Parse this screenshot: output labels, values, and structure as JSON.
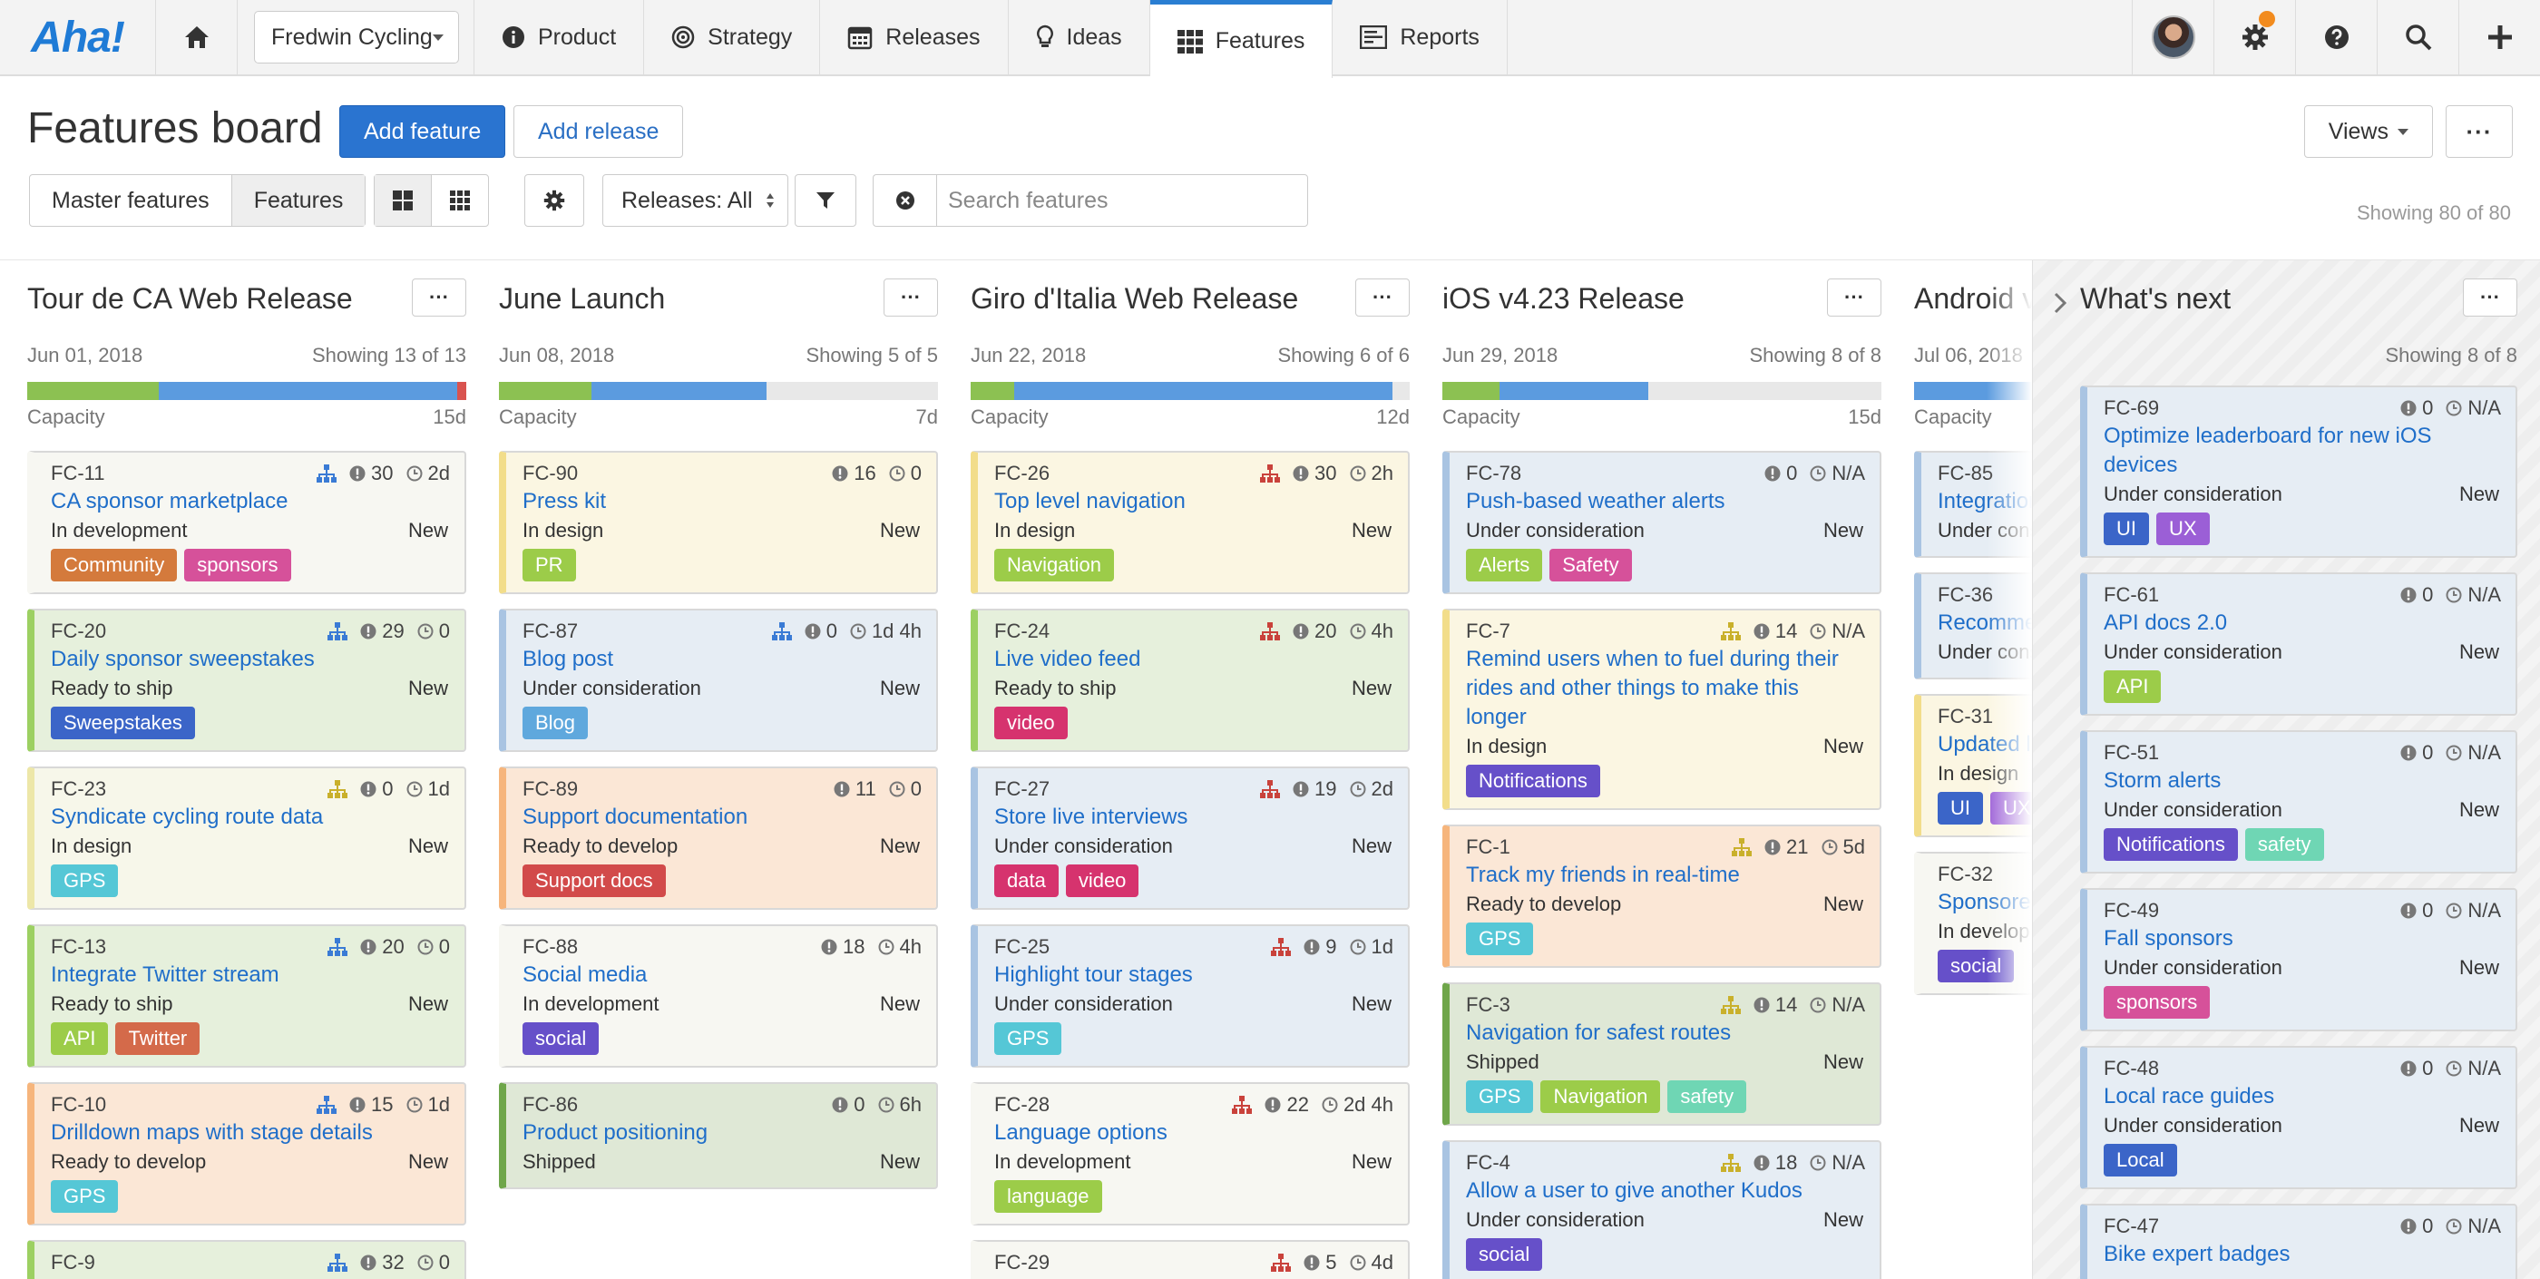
{
  "nav": {
    "logo": "Aha!",
    "product": "Fredwin Cycling",
    "items": [
      {
        "label": "Product",
        "icon": "info-icon"
      },
      {
        "label": "Strategy",
        "icon": "target-icon"
      },
      {
        "label": "Releases",
        "icon": "calendar-icon"
      },
      {
        "label": "Ideas",
        "icon": "lightbulb-icon"
      },
      {
        "label": "Features",
        "icon": "grid-icon",
        "active": true
      },
      {
        "label": "Reports",
        "icon": "report-icon"
      }
    ]
  },
  "header": {
    "title": "Features board",
    "add_feature": "Add feature",
    "add_release": "Add release",
    "views": "Views",
    "master_features": "Master features",
    "features": "Features",
    "releases_filter": "Releases: All",
    "search_placeholder": "Search features",
    "showing": "Showing 80 of 80"
  },
  "colors": {
    "green": "#8cc152",
    "blue": "#5b9bdf",
    "red": "#d9534f",
    "grey": "#e8e8e8",
    "card_white": "#f7f7f2",
    "card_yellow": "#fbf6e2",
    "card_blue": "#e6edf4",
    "card_green": "#e6f0dc",
    "card_orange": "#fbe7d6"
  },
  "columns": [
    {
      "title": "Tour de CA Web Release",
      "date": "Jun 01, 2018",
      "showing": "Showing 13 of 13",
      "capacity_label": "Capacity",
      "capacity_days": "15d",
      "capacity": [
        {
          "pct": 30,
          "color": "#8cc152"
        },
        {
          "pct": 68,
          "color": "#5b9bdf"
        },
        {
          "pct": 2,
          "color": "#d9534f"
        }
      ],
      "cards": [
        {
          "id": "FC-11",
          "title": "CA sponsor marketplace",
          "status": "In development",
          "state": "New",
          "score": "30",
          "time": "2d",
          "tree": "#3a7bd5",
          "bg": "#f7f7f2",
          "border": "#f7f7f2",
          "tags": [
            {
              "label": "Community",
              "color": "#d47a3c"
            },
            {
              "label": "sponsors",
              "color": "#d6519a"
            }
          ]
        },
        {
          "id": "FC-20",
          "title": "Daily sponsor sweepstakes",
          "status": "Ready to ship",
          "state": "New",
          "score": "29",
          "time": "0",
          "tree": "#3a7bd5",
          "bg": "#e6f0dc",
          "border": "#9cd062",
          "tags": [
            {
              "label": "Sweepstakes",
              "color": "#3b65c8"
            }
          ]
        },
        {
          "id": "FC-23",
          "title": "Syndicate cycling route data",
          "status": "In design",
          "state": "New",
          "score": "0",
          "time": "1d",
          "tree": "#c9b02b",
          "bg": "#f7f7ea",
          "border": "#ede7a8",
          "tags": [
            {
              "label": "GPS",
              "color": "#55c7d6"
            }
          ]
        },
        {
          "id": "FC-13",
          "title": "Integrate Twitter stream",
          "status": "Ready to ship",
          "state": "New",
          "score": "20",
          "time": "0",
          "tree": "#3a7bd5",
          "bg": "#e6f0dc",
          "border": "#9cd062",
          "tags": [
            {
              "label": "API",
              "color": "#9ccc49"
            },
            {
              "label": "Twitter",
              "color": "#d46a4a"
            }
          ]
        },
        {
          "id": "FC-10",
          "title": "Drilldown maps with stage details",
          "status": "Ready to develop",
          "state": "New",
          "score": "15",
          "time": "1d",
          "tree": "#3a7bd5",
          "bg": "#fbe7d6",
          "border": "#f6b57c",
          "tags": [
            {
              "label": "GPS",
              "color": "#55c7d6"
            }
          ]
        },
        {
          "id": "FC-9",
          "title": "",
          "status": "",
          "state": "",
          "score": "32",
          "time": "0",
          "tree": "#3a7bd5",
          "bg": "#e6f0dc",
          "border": "#9cd062",
          "tags": []
        }
      ]
    },
    {
      "title": "June Launch",
      "date": "Jun 08, 2018",
      "showing": "Showing 5 of 5",
      "capacity_label": "Capacity",
      "capacity_days": "7d",
      "capacity": [
        {
          "pct": 21,
          "color": "#8cc152"
        },
        {
          "pct": 40,
          "color": "#5b9bdf"
        }
      ],
      "cards": [
        {
          "id": "FC-90",
          "title": "Press kit",
          "status": "In design",
          "state": "New",
          "score": "16",
          "time": "0",
          "tree": "",
          "bg": "#fbf6e2",
          "border": "#f2dd8a",
          "tags": [
            {
              "label": "PR",
              "color": "#9ccc49"
            }
          ]
        },
        {
          "id": "FC-87",
          "title": "Blog post",
          "status": "Under consideration",
          "state": "New",
          "score": "0",
          "time": "1d 4h",
          "tree": "#3a7bd5",
          "bg": "#e6edf4",
          "border": "#a9c4e2",
          "tags": [
            {
              "label": "Blog",
              "color": "#5fa8dd"
            }
          ]
        },
        {
          "id": "FC-89",
          "title": "Support documentation",
          "status": "Ready to develop",
          "state": "New",
          "score": "11",
          "time": "0",
          "tree": "",
          "bg": "#fbe7d6",
          "border": "#f6b57c",
          "tags": [
            {
              "label": "Support docs",
              "color": "#d24a4a"
            }
          ]
        },
        {
          "id": "FC-88",
          "title": "Social media",
          "status": "In development",
          "state": "New",
          "score": "18",
          "time": "4h",
          "tree": "",
          "bg": "#f7f7f2",
          "border": "#f7f7f2",
          "tags": [
            {
              "label": "social",
              "color": "#6650c9"
            }
          ]
        },
        {
          "id": "FC-86",
          "title": "Product positioning",
          "status": "Shipped",
          "state": "New",
          "score": "0",
          "time": "6h",
          "tree": "",
          "bg": "#dfe8d6",
          "border": "#6fa64a",
          "tags": []
        }
      ]
    },
    {
      "title": "Giro d'Italia Web Release",
      "date": "Jun 22, 2018",
      "showing": "Showing 6 of 6",
      "capacity_label": "Capacity",
      "capacity_days": "12d",
      "capacity": [
        {
          "pct": 10,
          "color": "#8cc152"
        },
        {
          "pct": 86,
          "color": "#5b9bdf"
        }
      ],
      "cards": [
        {
          "id": "FC-26",
          "title": "Top level navigation",
          "status": "In design",
          "state": "New",
          "score": "30",
          "time": "2h",
          "tree": "#c9423b",
          "bg": "#fbf6e2",
          "border": "#f2dd8a",
          "tags": [
            {
              "label": "Navigation",
              "color": "#9ccc49"
            }
          ]
        },
        {
          "id": "FC-24",
          "title": "Live video feed",
          "status": "Ready to ship",
          "state": "New",
          "score": "20",
          "time": "4h",
          "tree": "#c9423b",
          "bg": "#e6f0dc",
          "border": "#9cd062",
          "tags": [
            {
              "label": "video",
              "color": "#d6336e"
            }
          ]
        },
        {
          "id": "FC-27",
          "title": "Store live interviews",
          "status": "Under consideration",
          "state": "New",
          "score": "19",
          "time": "2d",
          "tree": "#c9423b",
          "bg": "#e6edf4",
          "border": "#a9c4e2",
          "tags": [
            {
              "label": "data",
              "color": "#d6336e"
            },
            {
              "label": "video",
              "color": "#d6336e"
            }
          ]
        },
        {
          "id": "FC-25",
          "title": "Highlight tour stages",
          "status": "Under consideration",
          "state": "New",
          "score": "9",
          "time": "1d",
          "tree": "#c9423b",
          "bg": "#e6edf4",
          "border": "#a9c4e2",
          "tags": [
            {
              "label": "GPS",
              "color": "#55c7d6"
            }
          ]
        },
        {
          "id": "FC-28",
          "title": "Language options",
          "status": "In development",
          "state": "New",
          "score": "22",
          "time": "2d 4h",
          "tree": "#c9423b",
          "bg": "#f7f7f2",
          "border": "#f7f7f2",
          "tags": [
            {
              "label": "language",
              "color": "#9ccc49"
            }
          ]
        },
        {
          "id": "FC-29",
          "title": "",
          "status": "",
          "state": "",
          "score": "5",
          "time": "4d",
          "tree": "#c9423b",
          "bg": "#f7f7f2",
          "border": "#f7f7f2",
          "tags": []
        }
      ]
    },
    {
      "title": "iOS v4.23 Release",
      "date": "Jun 29, 2018",
      "showing": "Showing 8 of 8",
      "capacity_label": "Capacity",
      "capacity_days": "15d",
      "capacity": [
        {
          "pct": 13,
          "color": "#8cc152"
        },
        {
          "pct": 34,
          "color": "#5b9bdf"
        }
      ],
      "cards": [
        {
          "id": "FC-78",
          "title": "Push-based weather alerts",
          "status": "Under consideration",
          "state": "New",
          "score": "0",
          "time": "N/A",
          "tree": "",
          "bg": "#e6edf4",
          "border": "#a9c4e2",
          "tags": [
            {
              "label": "Alerts",
              "color": "#9ccc49"
            },
            {
              "label": "Safety",
              "color": "#d6519a"
            }
          ]
        },
        {
          "id": "FC-7",
          "title": "Remind users when to fuel during their rides and other things to make this longer",
          "status": "In design",
          "state": "New",
          "score": "14",
          "time": "N/A",
          "tree": "#c9b02b",
          "bg": "#fbf6e2",
          "border": "#f2dd8a",
          "tags": [
            {
              "label": "Notifications",
              "color": "#6650c9"
            }
          ]
        },
        {
          "id": "FC-1",
          "title": "Track my friends in real-time",
          "status": "Ready to develop",
          "state": "New",
          "score": "21",
          "time": "5d",
          "tree": "#c9b02b",
          "bg": "#fbe7d6",
          "border": "#f6b57c",
          "tags": [
            {
              "label": "GPS",
              "color": "#55c7d6"
            }
          ]
        },
        {
          "id": "FC-3",
          "title": "Navigation for safest routes",
          "status": "Shipped",
          "state": "New",
          "score": "14",
          "time": "N/A",
          "tree": "#c9b02b",
          "bg": "#dfe8d6",
          "border": "#6fa64a",
          "tags": [
            {
              "label": "GPS",
              "color": "#55c7d6"
            },
            {
              "label": "Navigation",
              "color": "#9ccc49"
            },
            {
              "label": "safety",
              "color": "#6fd6b4"
            }
          ]
        },
        {
          "id": "FC-4",
          "title": "Allow a user to give another Kudos",
          "status": "Under consideration",
          "state": "New",
          "score": "18",
          "time": "N/A",
          "tree": "#c9b02b",
          "bg": "#e6edf4",
          "border": "#a9c4e2",
          "tags": [
            {
              "label": "social",
              "color": "#6650c9"
            }
          ]
        }
      ]
    },
    {
      "title": "Android v",
      "date": "Jul 06, 2018",
      "showing": "",
      "capacity_label": "Capacity",
      "capacity_days": "",
      "capacity": [
        {
          "pct": 100,
          "color": "#5b9bdf"
        }
      ],
      "cards": [
        {
          "id": "FC-85",
          "title": "Integration",
          "status": "Under cons",
          "state": "",
          "score": "",
          "time": "",
          "tree": "",
          "bg": "#e6edf4",
          "border": "#a9c4e2",
          "tags": []
        },
        {
          "id": "FC-36",
          "title": "Recomme",
          "status": "Under cons",
          "state": "",
          "score": "",
          "time": "",
          "tree": "",
          "bg": "#e6edf4",
          "border": "#a9c4e2",
          "tags": []
        },
        {
          "id": "FC-31",
          "title": "Updated l",
          "status": "In design",
          "state": "",
          "score": "",
          "time": "",
          "tree": "",
          "bg": "#fbf6e2",
          "border": "#f2dd8a",
          "tags": [
            {
              "label": "UI",
              "color": "#3b65c8"
            },
            {
              "label": "UX",
              "color": "#9b5fd6"
            }
          ]
        },
        {
          "id": "FC-32",
          "title": "Sponsore",
          "status": "In develop",
          "state": "",
          "score": "",
          "time": "",
          "tree": "",
          "bg": "#f7f7f2",
          "border": "#f7f7f2",
          "tags": [
            {
              "label": "social",
              "color": "#6650c9"
            }
          ]
        }
      ]
    }
  ],
  "whats_next": {
    "title": "What's next",
    "showing": "Showing 8 of 8",
    "cards": [
      {
        "id": "FC-69",
        "title": "Optimize leaderboard for new iOS devices",
        "status": "Under consideration",
        "state": "New",
        "score": "0",
        "time": "N/A",
        "tree": "",
        "bg": "#e6edf4",
        "border": "#a9c4e2",
        "tags": [
          {
            "label": "UI",
            "color": "#3b65c8"
          },
          {
            "label": "UX",
            "color": "#9b5fd6"
          }
        ]
      },
      {
        "id": "FC-61",
        "title": "API docs 2.0",
        "status": "Under consideration",
        "state": "New",
        "score": "0",
        "time": "N/A",
        "tree": "",
        "bg": "#e6edf4",
        "border": "#a9c4e2",
        "tags": [
          {
            "label": "API",
            "color": "#9ccc49"
          }
        ]
      },
      {
        "id": "FC-51",
        "title": "Storm alerts",
        "status": "Under consideration",
        "state": "New",
        "score": "0",
        "time": "N/A",
        "tree": "",
        "bg": "#e6edf4",
        "border": "#a9c4e2",
        "tags": [
          {
            "label": "Notifications",
            "color": "#6650c9"
          },
          {
            "label": "safety",
            "color": "#6fd6b4"
          }
        ]
      },
      {
        "id": "FC-49",
        "title": "Fall sponsors",
        "status": "Under consideration",
        "state": "New",
        "score": "0",
        "time": "N/A",
        "tree": "",
        "bg": "#e6edf4",
        "border": "#a9c4e2",
        "tags": [
          {
            "label": "sponsors",
            "color": "#d6519a"
          }
        ]
      },
      {
        "id": "FC-48",
        "title": "Local race guides",
        "status": "Under consideration",
        "state": "New",
        "score": "0",
        "time": "N/A",
        "tree": "",
        "bg": "#e6edf4",
        "border": "#a9c4e2",
        "tags": [
          {
            "label": "Local",
            "color": "#3b65c8"
          }
        ]
      },
      {
        "id": "FC-47",
        "title": "Bike expert badges",
        "status": "",
        "state": "",
        "score": "0",
        "time": "N/A",
        "tree": "",
        "bg": "#e6edf4",
        "border": "#a9c4e2",
        "tags": []
      }
    ]
  }
}
